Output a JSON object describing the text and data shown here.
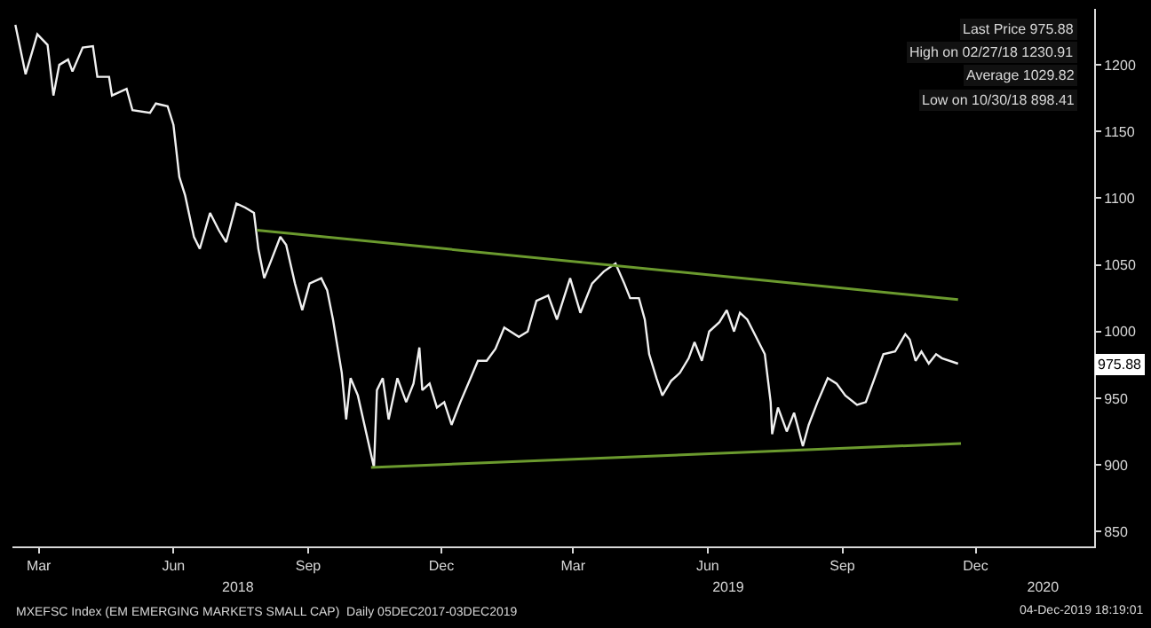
{
  "chart_data": {
    "type": "line",
    "series": [
      {
        "color": "#f0f0f0",
        "x": [
          "2018-02-27",
          "2018-03-06",
          "2018-03-14",
          "2018-03-21",
          "2018-03-25",
          "2018-03-29",
          "2018-04-04",
          "2018-04-07",
          "2018-04-14",
          "2018-04-21",
          "2018-04-24",
          "2018-05-02",
          "2018-05-04",
          "2018-05-14",
          "2018-05-18",
          "2018-05-30",
          "2018-06-03",
          "2018-06-11",
          "2018-06-15",
          "2018-06-19",
          "2018-06-23",
          "2018-06-29",
          "2018-07-03",
          "2018-07-10",
          "2018-07-16",
          "2018-07-21",
          "2018-07-28",
          "2018-08-03",
          "2018-08-09",
          "2018-08-12",
          "2018-08-16",
          "2018-08-21",
          "2018-08-27",
          "2018-08-31",
          "2018-09-06",
          "2018-09-11",
          "2018-09-16",
          "2018-09-24",
          "2018-09-28",
          "2018-10-02",
          "2018-10-08",
          "2018-10-11",
          "2018-10-14",
          "2018-10-19",
          "2018-10-30",
          "2018-11-01",
          "2018-11-05",
          "2018-11-09",
          "2018-11-15",
          "2018-11-21",
          "2018-11-26",
          "2018-11-30",
          "2018-12-02",
          "2018-12-07",
          "2018-12-12",
          "2018-12-17",
          "2018-12-22",
          "2018-12-28",
          "2019-01-04",
          "2019-01-09",
          "2019-01-15",
          "2019-01-21",
          "2019-01-27",
          "2019-02-06",
          "2019-02-12",
          "2019-02-18",
          "2019-02-26",
          "2019-03-04",
          "2019-03-13",
          "2019-03-20",
          "2019-03-28",
          "2019-04-05",
          "2019-04-13",
          "2019-04-19",
          "2019-04-23",
          "2019-04-29",
          "2019-05-03",
          "2019-05-06",
          "2019-05-11",
          "2019-05-15",
          "2019-05-21",
          "2019-05-27",
          "2019-06-02",
          "2019-06-06",
          "2019-06-11",
          "2019-06-16",
          "2019-06-23",
          "2019-06-28",
          "2019-07-03",
          "2019-07-07",
          "2019-07-12",
          "2019-07-18",
          "2019-07-24",
          "2019-07-28",
          "2019-07-29",
          "2019-08-02",
          "2019-08-08",
          "2019-08-13",
          "2019-08-19",
          "2019-08-23",
          "2019-08-29",
          "2019-09-05",
          "2019-09-11",
          "2019-09-17",
          "2019-09-25",
          "2019-10-01",
          "2019-10-07",
          "2019-10-13",
          "2019-10-21",
          "2019-10-28",
          "2019-10-31",
          "2019-11-04",
          "2019-11-08",
          "2019-11-13",
          "2019-11-18",
          "2019-11-22",
          "2019-12-03"
        ],
        "values": [
          1230,
          1193,
          1223,
          1215,
          1177,
          1200,
          1204,
          1195,
          1213,
          1214,
          1191,
          1191,
          1177,
          1182,
          1166,
          1164,
          1171,
          1169,
          1155,
          1116,
          1102,
          1071,
          1062,
          1089,
          1076,
          1067,
          1096,
          1093,
          1089,
          1062,
          1040,
          1054,
          1071,
          1065,
          1036,
          1016,
          1036,
          1040,
          1031,
          1009,
          969,
          934,
          965,
          952,
          898,
          956,
          965,
          934,
          965,
          947,
          961,
          988,
          956,
          961,
          943,
          947,
          930,
          947,
          965,
          978,
          978,
          987,
          1003,
          996,
          1000,
          1023,
          1027,
          1009,
          1040,
          1014,
          1036,
          1045,
          1051,
          1036,
          1025,
          1025,
          1009,
          983,
          965,
          952,
          963,
          969,
          980,
          992,
          978,
          1000,
          1007,
          1016,
          1000,
          1014,
          1009,
          996,
          983,
          947,
          923,
          943,
          925,
          939,
          914,
          930,
          947,
          965,
          961,
          952,
          945,
          947,
          965,
          983,
          985,
          998,
          994,
          978,
          985,
          976,
          983,
          980,
          975.88
        ]
      },
      {
        "color": "#6b9a2e",
        "x": [
          "2018-08-11",
          "2019-12-03"
        ],
        "values": [
          1076,
          1024
        ]
      },
      {
        "color": "#6b9a2e",
        "x": [
          "2018-10-28",
          "2019-12-05"
        ],
        "values": [
          898,
          916
        ]
      }
    ],
    "xlim": [
      "2018-02-25",
      "2020-03-05"
    ],
    "xticks": [
      {
        "value": "2018-03-15",
        "label": "Mar"
      },
      {
        "value": "2018-06-15",
        "label": "Jun"
      },
      {
        "value": "2018-09-15",
        "label": "Sep"
      },
      {
        "value": "2018-12-15",
        "label": "Dec"
      },
      {
        "value": "2019-03-15",
        "label": "Mar"
      },
      {
        "value": "2019-06-15",
        "label": "Jun"
      },
      {
        "value": "2019-09-15",
        "label": "Sep"
      },
      {
        "value": "2019-12-15",
        "label": "Dec"
      }
    ],
    "x2lim": [
      "2018-02-25",
      "2020-03-05"
    ],
    "x2ticks": [
      {
        "value": "2018-07-29",
        "label": "2018"
      },
      {
        "value": "2019-06-29",
        "label": "2019"
      },
      {
        "value": "2020-01-30",
        "label": "2020"
      }
    ],
    "ylim": [
      839,
      1242
    ],
    "yticks": [
      850,
      900,
      950,
      1000,
      1050,
      1100,
      1150,
      1200
    ],
    "grid": false,
    "annotations": [
      "Last Price 975.88",
      "High on 02/27/18 1230.91",
      "Average 1029.82",
      "Low on 10/30/18 898.41",
      {
        "text": "975.88",
        "y": 975.88
      },
      "MXEFSC Index (EM EMERGING MARKETS SMALL CAP)  Daily 05DEC2017-03DEC2019",
      "04-Dec-2019 18:19:01"
    ]
  }
}
